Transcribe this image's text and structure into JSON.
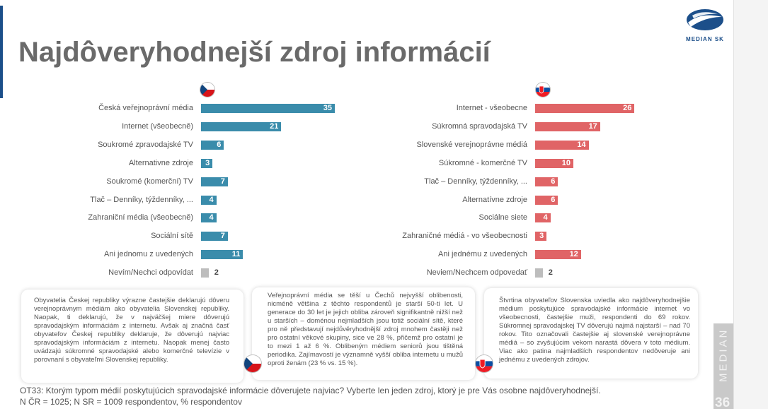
{
  "title": "Najdôveryhodnejší zdroj informácií",
  "logo": {
    "text": "MEDIAN SK"
  },
  "side_label": "MEDIAN",
  "page_number": "36",
  "colors": {
    "cz_bar": "#3a8cab",
    "sk_bar": "#e06466",
    "none_bar": "#bdbdbd",
    "accent": "#1c4f8a"
  },
  "cz": {
    "flag": "czech-flag-icon",
    "items": [
      {
        "label": "Česká veřejnoprávní média",
        "value": 35
      },
      {
        "label": "Internet (všeobecně)",
        "value": 21
      },
      {
        "label": "Soukromé zpravodajské TV",
        "value": 6
      },
      {
        "label": "Alternativne zdroje",
        "value": 3
      },
      {
        "label": "Soukromé (komerční) TV",
        "value": 7
      },
      {
        "label": "Tlač – Denníky, týždenníky, ...",
        "value": 4
      },
      {
        "label": "Zahraniční média (všeobecně)",
        "value": 4
      },
      {
        "label": "Sociální sítě",
        "value": 7
      },
      {
        "label": "Ani jednomu z uvedených",
        "value": 11
      },
      {
        "label": "Nevím/Nechci odpovídat",
        "value": 2
      }
    ]
  },
  "sk": {
    "flag": "slovak-flag-icon",
    "items": [
      {
        "label": "Internet - všeobecne",
        "value": 26
      },
      {
        "label": "Súkromná spravodajská TV",
        "value": 17
      },
      {
        "label": "Slovenské verejnoprávne médiá",
        "value": 14
      },
      {
        "label": "Súkromné - komerčné TV",
        "value": 10
      },
      {
        "label": "Tlač – Denníky, týždenníky, ...",
        "value": 6
      },
      {
        "label": "Alternatívne zdroje",
        "value": 6
      },
      {
        "label": "Sociálne siete",
        "value": 4
      },
      {
        "label": "Zahraničné médiá - vo všeobecnosti",
        "value": 3
      },
      {
        "label": "Ani jednému z uvedených",
        "value": 12
      },
      {
        "label": "Neviem/Nechcem odpovedať",
        "value": 2
      }
    ]
  },
  "boxes": {
    "left": "Obyvatelia Českej republiky výrazne častejšie deklarujú dôveru verejnoprávnym médiám ako obyvatelia Slovenskej republiky. Naopak, ti deklarujú, že v najväčšej miere dôverujú spravodajským informáciám z internetu. Avšak aj značná časť obyvateľov Českej republiky deklaruje, že dôverujú najviac spravodajským informáciám z internetu. Naopak menej často uvádzajú súkromné spravodajské alebo komerčné televízie v porovnaní s obyvateľmi Slovenskej republiky.",
    "middle": "Veřejnoprávní média se těší u Čechů nejvyšší oblibenosti, nicméně většina z těchto respondentů je starší 50-ti let. U generace do 30 let je jejich obliba zároveň signifikantně nižší než u starších – doménou nejmladších jsou totiž sociální sítě, které pro ně představují nejdůvěryhodnější zdroj mnohem častěji než pro ostatní věkové skupiny, sice ve 28 %, přičemž pro ostatní je to mezi 1 až 6 %. Oblibeným médiem seniorů jsou tištěná periodika. Zajímavostí je významně vyšší obliba internetu u mužů oproti ženám (23 % vs. 15 %).",
    "right": "Štvrtina obyvateľov Slovenska uviedla ako najdôveryhodnejšie médium poskytujúce spravodajské informácie internet vo všeobecnosti, častejšie muži, respondenti do 69 rokov. Súkromnej spravodajskej TV dôverujú najmä najstarší – nad 70 rokov. Tito označovali častejšie aj slovenské verejnoprávne médiá – so zvyšujúcim vekom narastá dôvera v toto médium. Viac ako patina najmladších respondentov nedôveruje ani jednému z uvedených zdrojov."
  },
  "footnotes": {
    "question": "OT33: Ktorým typom médií poskytujúcich spravodajské informácie dôverujete najviac? Vyberte len jeden zdroj, ktorý je pre Vás osobne najdôveryhodnejší.",
    "sample": "N ČR = 1025; N SR = 1009 respondentov, % respondentov"
  },
  "chart_data": [
    {
      "type": "bar",
      "categories": [
        "Česká veřejnoprávní média",
        "Internet (všeobecně)",
        "Soukromé zpravodajské TV",
        "Alternativne zdroje",
        "Soukromé (komerční) TV",
        "Tlač – Denníky, týždenníky, ...",
        "Zahraniční média (všeobecně)",
        "Sociální sítě",
        "Ani jednomu z uvedených",
        "Nevím/Nechci odpovídat"
      ],
      "values": [
        35,
        21,
        6,
        3,
        7,
        4,
        4,
        7,
        11,
        2
      ]
    },
    {
      "type": "bar",
      "categories": [
        "Internet - všeobecne",
        "Súkromná spravodajská TV",
        "Slovenské verejnoprávne médiá",
        "Súkromné - komerčné TV",
        "Tlač – Denníky, týždenníky, ...",
        "Alternatívne zdroje",
        "Sociálne siete",
        "Zahraničné médiá - vo všeobecnosti",
        "Ani jednému z uvedených",
        "Neviem/Nechcem odpovedať"
      ],
      "values": [
        26,
        17,
        14,
        10,
        6,
        6,
        4,
        3,
        12,
        2
      ]
    }
  ]
}
